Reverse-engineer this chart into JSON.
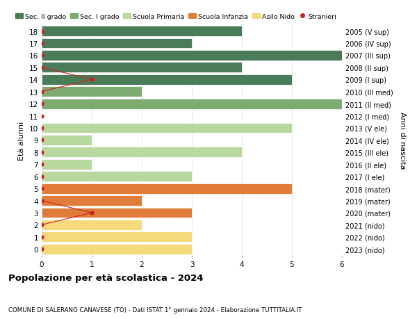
{
  "ages": [
    18,
    17,
    16,
    15,
    14,
    13,
    12,
    11,
    10,
    9,
    8,
    7,
    6,
    5,
    4,
    3,
    2,
    1,
    0
  ],
  "years_labels": [
    "2005 (V sup)",
    "2006 (IV sup)",
    "2007 (III sup)",
    "2008 (II sup)",
    "2009 (I sup)",
    "2010 (III med)",
    "2011 (II med)",
    "2012 (I med)",
    "2013 (V ele)",
    "2014 (IV ele)",
    "2015 (III ele)",
    "2016 (II ele)",
    "2017 (I ele)",
    "2018 (mater)",
    "2019 (mater)",
    "2020 (mater)",
    "2021 (nido)",
    "2022 (nido)",
    "2023 (nido)"
  ],
  "bar_values": [
    4,
    3,
    6,
    4,
    5,
    2,
    6,
    0,
    5,
    1,
    4,
    1,
    3,
    5,
    2,
    3,
    2,
    3,
    3
  ],
  "bar_colors": [
    "#4a7c59",
    "#4a7c59",
    "#4a7c59",
    "#4a7c59",
    "#4a7c59",
    "#7dab70",
    "#7dab70",
    "#7dab70",
    "#b8d8a0",
    "#b8d8a0",
    "#b8d8a0",
    "#b8d8a0",
    "#b8d8a0",
    "#e07b39",
    "#e07b39",
    "#e07b39",
    "#f5d97a",
    "#f5d97a",
    "#f5d97a"
  ],
  "legend_labels": [
    "Sec. II grado",
    "Sec. I grado",
    "Scuola Primaria",
    "Scuola Infanzia",
    "Asilo Nido",
    "Stranieri"
  ],
  "legend_colors": [
    "#4a7c59",
    "#7dab70",
    "#b8d8a0",
    "#e07b39",
    "#f5d97a",
    "#cc2222"
  ],
  "title": "Popolazione per età scolastica - 2024",
  "subtitle": "COMUNE DI SALERANO CANAVESE (TO) - Dati ISTAT 1° gennaio 2024 - Elaborazione TUTTITALIA.IT",
  "ylabel_left": "Età alunni",
  "ylabel_right": "Anni di nascita",
  "xlim": [
    0,
    6
  ],
  "bar_height": 0.85,
  "grid_color": "#cccccc",
  "bg_color": "#ffffff",
  "stranieri_line1_ages": [
    15,
    14,
    13
  ],
  "stranieri_line1_x": [
    0,
    1,
    0
  ],
  "stranieri_line2_ages": [
    4,
    3,
    2
  ],
  "stranieri_line2_x": [
    0,
    1,
    0
  ],
  "all_stranieri_ages": [
    18,
    17,
    16,
    15,
    14,
    13,
    12,
    11,
    10,
    9,
    8,
    7,
    6,
    5,
    4,
    3,
    2,
    1,
    0
  ],
  "all_stranieri_x": [
    0,
    0,
    0,
    0,
    1,
    0,
    0,
    0,
    0,
    0,
    0,
    0,
    0,
    0,
    0,
    1,
    0,
    0,
    0
  ]
}
